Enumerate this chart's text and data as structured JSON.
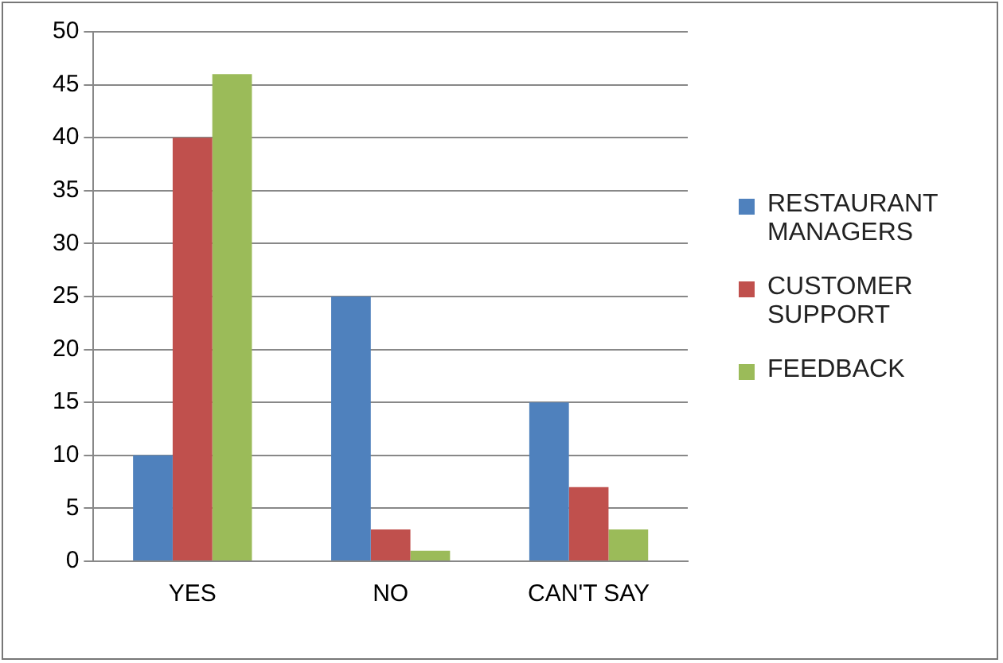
{
  "chart_data": {
    "type": "bar",
    "categories": [
      "YES",
      "NO",
      "CAN'T SAY"
    ],
    "series": [
      {
        "name": "RESTAURANT MANAGERS",
        "color": "#4f81bd",
        "values": [
          10,
          25,
          15
        ]
      },
      {
        "name": "CUSTOMER SUPPORT",
        "color": "#c0504d",
        "values": [
          40,
          3,
          7
        ]
      },
      {
        "name": "FEEDBACK",
        "color": "#9bbb59",
        "values": [
          46,
          1,
          3
        ]
      }
    ],
    "ylim": [
      0,
      50
    ],
    "yticks": [
      0,
      5,
      10,
      15,
      20,
      25,
      30,
      35,
      40,
      45,
      50
    ],
    "grid": "y",
    "legend": "right"
  }
}
